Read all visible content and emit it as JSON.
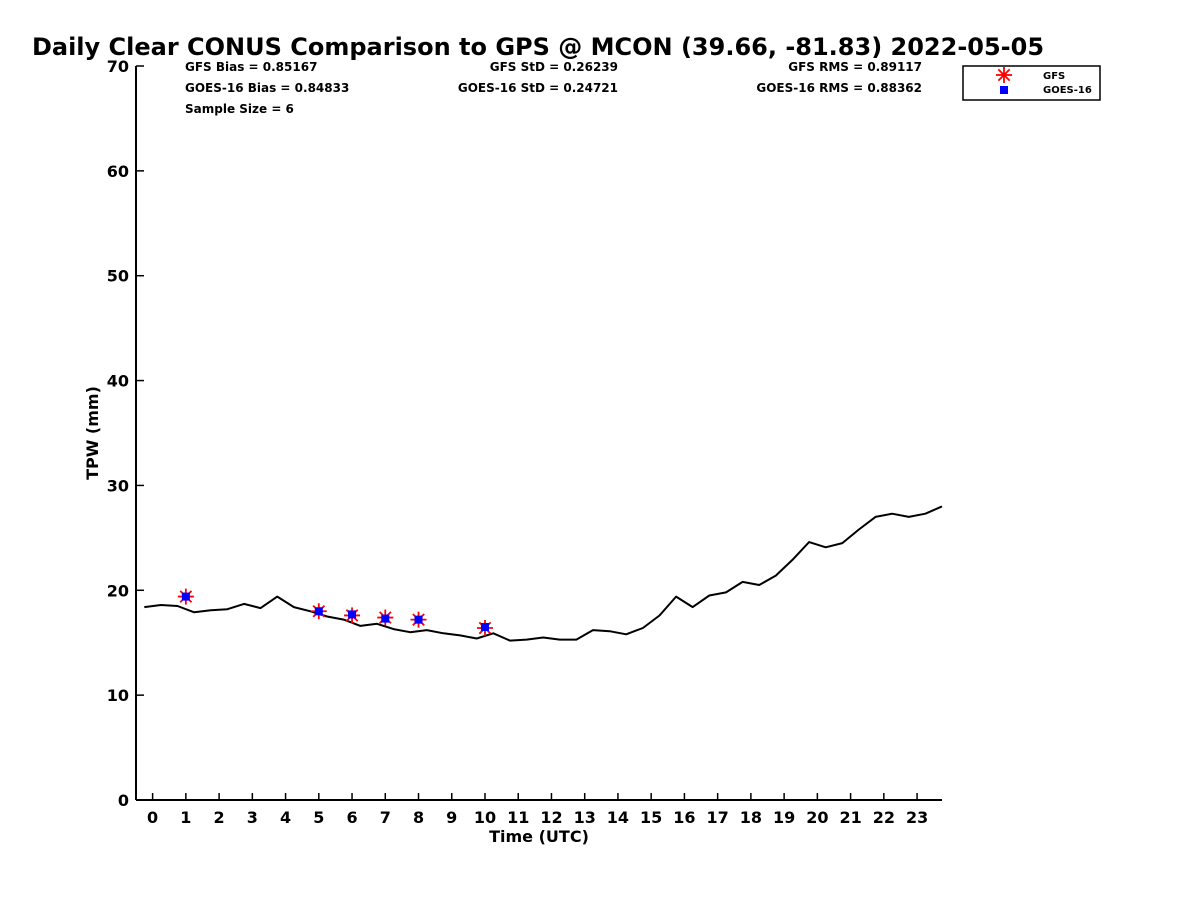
{
  "chart_data": {
    "type": "line",
    "title": "Daily Clear CONUS Comparison to GPS @ MCON (39.66, -81.83) 2022-05-05",
    "xlabel": "Time (UTC)",
    "ylabel": "TPW (mm)",
    "xlim": [
      -0.5,
      23.75
    ],
    "ylim": [
      0,
      70
    ],
    "x_ticks": [
      0,
      1,
      2,
      3,
      4,
      5,
      6,
      7,
      8,
      9,
      10,
      11,
      12,
      13,
      14,
      15,
      16,
      17,
      18,
      19,
      20,
      21,
      22,
      23
    ],
    "y_ticks": [
      0,
      10,
      20,
      30,
      40,
      50,
      60,
      70
    ],
    "grid": false,
    "legend_position": "top-right",
    "stats": {
      "gfs_bias": "GFS Bias = 0.85167",
      "goes_bias": "GOES-16 Bias = 0.84833",
      "sample_size": "Sample Size = 6",
      "gfs_std": "GFS StD = 0.26239",
      "goes_std": "GOES-16 StD = 0.24721",
      "gfs_rms": "GFS RMS = 0.89117",
      "goes_rms": "GOES-16 RMS = 0.88362"
    },
    "series": [
      {
        "name": "GPS",
        "kind": "line",
        "color": "#000000",
        "x": [
          -0.25,
          0.25,
          0.75,
          1.25,
          1.75,
          2.25,
          2.75,
          3.25,
          3.75,
          4.25,
          4.75,
          5.25,
          5.75,
          6.25,
          6.75,
          7.25,
          7.75,
          8.25,
          8.75,
          9.25,
          9.75,
          10.25,
          10.75,
          11.25,
          11.75,
          12.25,
          12.75,
          13.25,
          13.75,
          14.25,
          14.75,
          15.25,
          15.75,
          16.25,
          16.75,
          17.25,
          17.75,
          18.25,
          18.75,
          19.25,
          19.75,
          20.25,
          20.75,
          21.25,
          21.75,
          22.25,
          22.75,
          23.25,
          23.75
        ],
        "values": [
          18.4,
          18.6,
          18.5,
          17.9,
          18.1,
          18.2,
          18.7,
          18.3,
          19.4,
          18.4,
          18.0,
          17.5,
          17.2,
          16.6,
          16.8,
          16.3,
          16.0,
          16.2,
          15.9,
          15.7,
          15.4,
          15.9,
          15.2,
          15.3,
          15.5,
          15.3,
          15.3,
          16.2,
          16.1,
          15.8,
          16.4,
          17.6,
          19.4,
          18.4,
          19.5,
          19.8,
          20.8,
          20.5,
          21.4,
          22.9,
          24.6,
          24.1,
          24.5,
          25.8,
          27.0,
          27.3,
          27.0,
          27.3,
          28.0
        ]
      },
      {
        "name": "GFS",
        "kind": "marker",
        "marker": "asterisk",
        "color": "#ff0000",
        "x": [
          1,
          5,
          6,
          7,
          8,
          10
        ],
        "values": [
          19.4,
          18.0,
          17.6,
          17.4,
          17.2,
          16.4
        ]
      },
      {
        "name": "GOES-16",
        "kind": "marker",
        "marker": "square",
        "color": "#0000ff",
        "x": [
          1,
          5,
          6,
          7,
          8,
          10
        ],
        "values": [
          19.4,
          18.0,
          17.7,
          17.3,
          17.2,
          16.5
        ]
      }
    ]
  }
}
